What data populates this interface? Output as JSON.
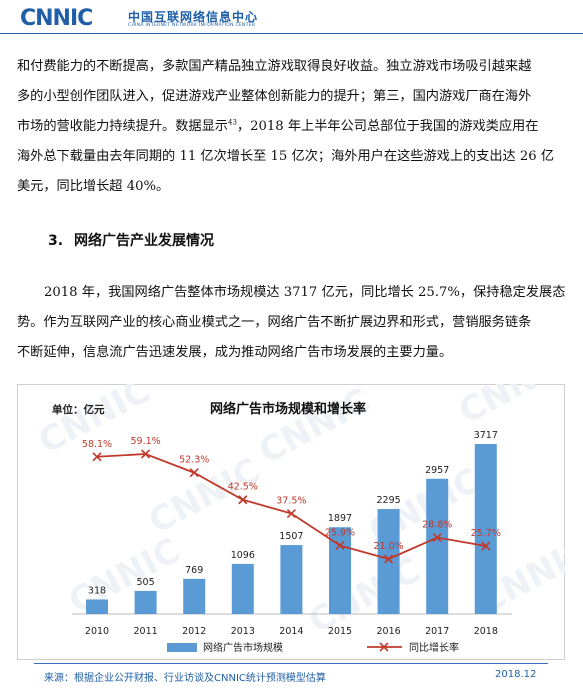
{
  "header": {
    "logo_text": "CNNIC",
    "org_cn": "中国互联网络信息中心",
    "org_en": "CHINA INTERNET NETWORK INFORMATION CENTER"
  },
  "paragraph1": {
    "lines": [
      "和付费能力的不断提高，多款国产精品独立游戏取得良好收益。独立游戏市场吸引越来越",
      "多的小型创作团队进入，促进游戏产业整体创新能力的提升；第三，国内游戏厂商在海外",
      "市场的营收能力持续提升。数据显示",
      "海外总下载量由去年同期的 11 亿次增长至 15 亿次；海外用户在这些游戏上的支出达 26 亿",
      "美元，同比增长超 40%。"
    ],
    "footnote_ref": "43",
    "line3_tail": "，2018 年上半年公司总部位于我国的游戏类应用在"
  },
  "section": {
    "number": "3.",
    "title": "网络广告产业发展情况"
  },
  "paragraph2": {
    "lines": [
      "2018 年，我国网络广告整体市场规模达 3717 亿元，同比增长 25.7%，保持稳定发展态",
      "势。作为互联网产业的核心商业模式之一，网络广告不断扩展边界和形式，营销服务链条",
      "不断延伸，信息流广告迅速发展，成为推动网络广告市场发展的主要力量。"
    ]
  },
  "chart_data": {
    "type": "bar",
    "title": "网络广告市场规模和增长率",
    "unit_label": "单位：亿元",
    "categories": [
      "2010",
      "2011",
      "2012",
      "2013",
      "2014",
      "2015",
      "2016",
      "2017",
      "2018"
    ],
    "series": [
      {
        "name": "网络广告市场规模",
        "type": "bar",
        "color": "#5b9bd5",
        "values": [
          318,
          505,
          769,
          1096,
          1507,
          1897,
          2295,
          2957,
          3717
        ]
      },
      {
        "name": "同比增长率",
        "type": "line",
        "color": "#c0392b",
        "values": [
          58.1,
          59.1,
          52.3,
          42.5,
          37.5,
          25.9,
          21.0,
          28.8,
          25.7
        ],
        "labels": [
          "58.1%",
          "59.1%",
          "52.3%",
          "42.5%",
          "37.5%",
          "25.9%",
          "21.0%",
          "28.8%",
          "25.7%"
        ]
      }
    ],
    "watermark": "CNNIC",
    "legend_position": "bottom"
  },
  "footer": {
    "source": "来源：根据企业公开财报、行业访谈及CNNIC统计预测模型估算",
    "date": "2018.12"
  },
  "colors": {
    "brand_blue": "#1f5fa8",
    "bar_blue": "#5b9bd5",
    "line_red": "#c0392b"
  }
}
